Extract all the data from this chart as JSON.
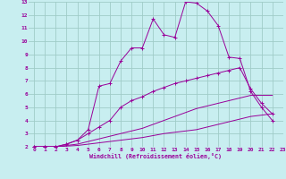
{
  "xlabel": "Windchill (Refroidissement éolien,°C)",
  "bg_color": "#c8eef0",
  "line_color": "#990099",
  "grid_color": "#a0ccc8",
  "series": [
    {
      "x": [
        0,
        1,
        2,
        3,
        4,
        5,
        6,
        7,
        8,
        9,
        10,
        11,
        12,
        13,
        14,
        15,
        16,
        17,
        18,
        19,
        20,
        21,
        22
      ],
      "y": [
        2,
        2,
        2,
        2.2,
        2.5,
        3.3,
        6.6,
        6.8,
        8.5,
        9.5,
        9.5,
        11.7,
        10.5,
        10.3,
        13.0,
        12.9,
        12.3,
        11.2,
        8.8,
        8.7,
        6.2,
        5.0,
        4.0
      ],
      "marker": "+"
    },
    {
      "x": [
        0,
        1,
        2,
        3,
        4,
        5,
        6,
        7,
        8,
        9,
        10,
        11,
        12,
        13,
        14,
        15,
        16,
        17,
        18,
        19,
        20,
        21,
        22
      ],
      "y": [
        2,
        2,
        2,
        2.2,
        2.5,
        3.0,
        3.5,
        4.0,
        5.0,
        5.5,
        5.8,
        6.2,
        6.5,
        6.8,
        7.0,
        7.2,
        7.4,
        7.6,
        7.8,
        8.0,
        6.4,
        5.3,
        4.5
      ],
      "marker": "+"
    },
    {
      "x": [
        0,
        1,
        2,
        3,
        4,
        5,
        6,
        7,
        8,
        9,
        10,
        11,
        12,
        13,
        14,
        15,
        16,
        17,
        18,
        19,
        20,
        21,
        22
      ],
      "y": [
        2,
        2,
        2,
        2.1,
        2.2,
        2.4,
        2.6,
        2.8,
        3.0,
        3.2,
        3.4,
        3.7,
        4.0,
        4.3,
        4.6,
        4.9,
        5.1,
        5.3,
        5.5,
        5.7,
        5.9,
        5.9,
        5.9
      ],
      "marker": null
    },
    {
      "x": [
        0,
        1,
        2,
        3,
        4,
        5,
        6,
        7,
        8,
        9,
        10,
        11,
        12,
        13,
        14,
        15,
        16,
        17,
        18,
        19,
        20,
        21,
        22
      ],
      "y": [
        2,
        2,
        2,
        2.05,
        2.1,
        2.2,
        2.3,
        2.4,
        2.5,
        2.6,
        2.7,
        2.85,
        3.0,
        3.1,
        3.2,
        3.3,
        3.5,
        3.7,
        3.9,
        4.1,
        4.3,
        4.4,
        4.5
      ],
      "marker": null
    }
  ],
  "xlim": [
    -0.5,
    23
  ],
  "ylim": [
    2,
    13
  ],
  "yticks": [
    2,
    3,
    4,
    5,
    6,
    7,
    8,
    9,
    10,
    11,
    12,
    13
  ],
  "xticks": [
    0,
    1,
    2,
    3,
    4,
    5,
    6,
    7,
    8,
    9,
    10,
    11,
    12,
    13,
    14,
    15,
    16,
    17,
    18,
    19,
    20,
    21,
    22,
    23
  ]
}
